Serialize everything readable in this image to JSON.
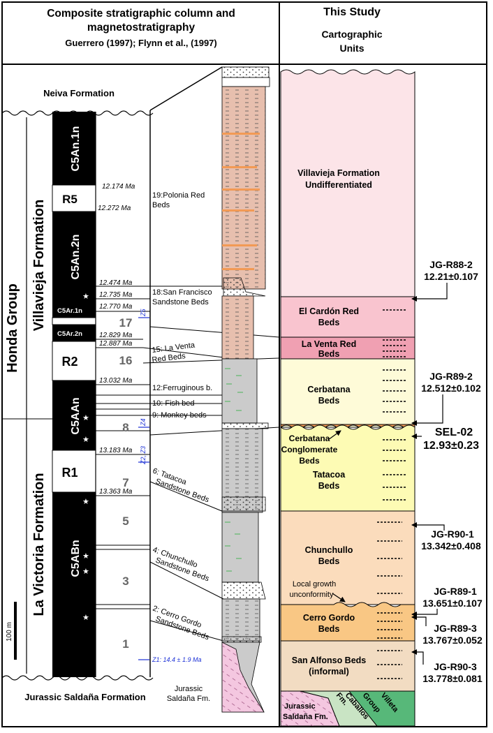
{
  "header": {
    "left_title_line1": "Composite stratigraphic column and",
    "left_title_line2": "magnetostratigraphy",
    "left_citation": "Guerrero (1997); Flynn et al., (1997)",
    "right_title": "This Study",
    "right_subtitle_line1": "Cartographic",
    "right_subtitle_line2": "Units"
  },
  "formations": {
    "neiva": "Neiva Formation",
    "honda_group": "Honda Group",
    "villavieja": "Villavieja Formation",
    "la_victoria": "La Victoria Formation",
    "saldana": "Jurassic Saldaña Formation",
    "saldana_short_line1": "Jurassic",
    "saldana_short_line2": "Saldaña Fm."
  },
  "chrons": [
    {
      "label": "C5An.1n",
      "polarity": "normal"
    },
    {
      "label": "R5",
      "polarity": "reversed"
    },
    {
      "label": "C5An.2n",
      "polarity": "normal"
    },
    {
      "label": "C5Ar.1n",
      "polarity": "normal"
    },
    {
      "label": "C5Ar.2n",
      "polarity": "normal"
    },
    {
      "label": "R2",
      "polarity": "reversed"
    },
    {
      "label": "C5AAn",
      "polarity": "normal"
    },
    {
      "label": "R1",
      "polarity": "reversed"
    },
    {
      "label": "C5ABn",
      "polarity": "normal"
    }
  ],
  "ages": [
    "12.174 Ma",
    "12.272 Ma",
    "12.474 Ma",
    "12.735 Ma",
    "12.770 Ma",
    "12.829 Ma",
    "12.887 Ma",
    "13.032 Ma",
    "13.183 Ma",
    "13.363 Ma"
  ],
  "red_bed_numbers": [
    "17",
    "16",
    "8",
    "7",
    "5",
    "3",
    "1"
  ],
  "zone_labels": [
    "Z5",
    "Z4",
    "Z2, Z3"
  ],
  "z1_label": "Z1: 14.4 ± 1.9 Ma",
  "beds": [
    {
      "line1": "19:Polonia Red",
      "line2": "Beds"
    },
    {
      "line1": "18:San Francisco",
      "line2": "Sandstone Beds"
    },
    {
      "line1": "15: La Venta",
      "line2": "Red Beds"
    },
    {
      "line1": "12:Ferruginous b.",
      "line2": ""
    },
    {
      "line1": "10: Fish bed",
      "line2": ""
    },
    {
      "line1": "9: Monkey beds",
      "line2": ""
    },
    {
      "line1": "6: Tatacoa",
      "line2": "Sandstone Beds"
    },
    {
      "line1": "4: Chunchullo",
      "line2": "Sandstone Beds"
    },
    {
      "line1": "2: Cerro Gordo",
      "line2": "Sandstone Beds"
    }
  ],
  "scale_bar": "100 m",
  "units": [
    {
      "line1": "Villavieja Formation",
      "line2": "Undifferentiated",
      "color": "#fce4e8"
    },
    {
      "line1": "El Cardón Red",
      "line2": "Beds",
      "color": "#f9c4cf"
    },
    {
      "line1": "La Venta Red",
      "line2": "Beds",
      "color": "#f0a0b2"
    },
    {
      "line1": "Cerbatana",
      "line2": "Beds",
      "color": "#fefbd8"
    },
    {
      "line1": "Tatacoa",
      "line2": "Beds",
      "color": "#fdfbb4"
    },
    {
      "line1": "Chunchullo",
      "line2": "Beds",
      "color": "#fbdcbc"
    },
    {
      "line1": "Cerro Gordo",
      "line2": "Beds",
      "color": "#f9c784"
    },
    {
      "line1": "San Alfonso Beds",
      "line2": "(informal)",
      "color": "#f2dcc2"
    }
  ],
  "cerbatana_conglomerate": [
    "Cerbatana",
    "Conglomerate",
    "Beds"
  ],
  "local_growth": [
    "Local growth",
    "unconformity"
  ],
  "basement": {
    "saldana_line1": "Jurassic",
    "saldana_line2": "Saldaña Fm.",
    "caballos_line1": "Caballos",
    "caballos_line2": "Fm.",
    "villeta_line1": "Villeta",
    "villeta_line2": "Group"
  },
  "samples": [
    {
      "id": "JG-R88-2",
      "age": "12.21±0.107"
    },
    {
      "id": "JG-R89-2",
      "age": "12.512±0.102"
    },
    {
      "id": "SEL-02",
      "age": "12.93±0.23"
    },
    {
      "id": "JG-R90-1",
      "age": "13.342±0.408"
    },
    {
      "id": "JG-R89-1",
      "age": "13.651±0.107"
    },
    {
      "id": "JG-R89-3",
      "age": "13.767±0.052"
    },
    {
      "id": "JG-R90-3",
      "age": "13.778±0.081"
    }
  ],
  "colors": {
    "red_beds": "#e7bfae",
    "sandstone": "#f4f4f4",
    "mudstone_green": "#cbcbcb",
    "orange_layer": "#f29a55",
    "saldana_pink": "#f4c7e0",
    "caballos_green": "#c9e4c4",
    "villeta_green": "#57b879",
    "zone_blue": "#1a2fd6"
  }
}
